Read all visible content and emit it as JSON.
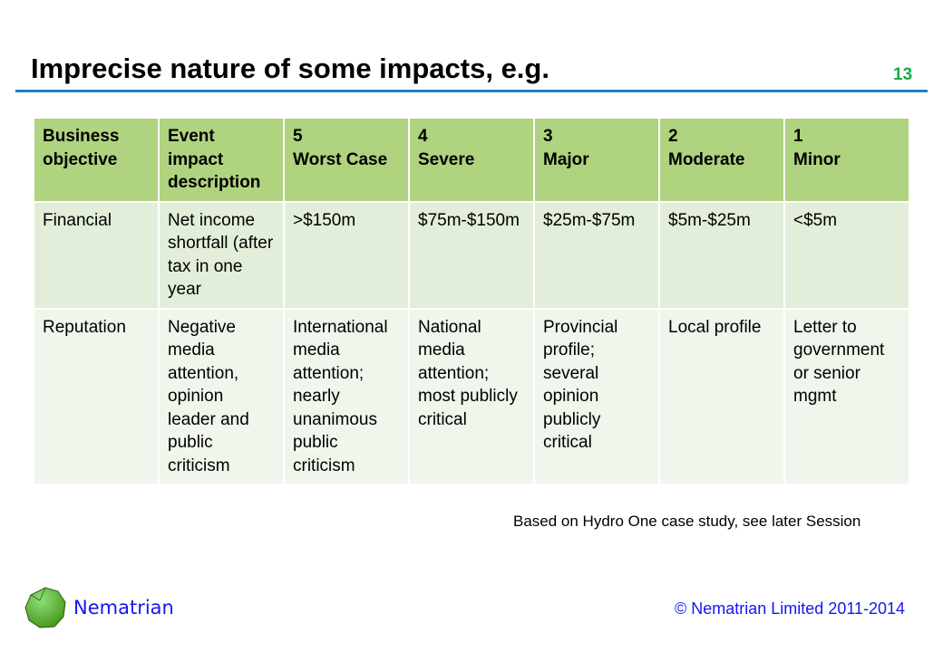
{
  "slide": {
    "title": "Imprecise nature of some impacts, e.g.",
    "page_number": "13",
    "note": "Based on Hydro One case study, see later Session",
    "brand": "Nematrian",
    "copyright": "© Nematrian Limited 2011-2014"
  },
  "table": {
    "headers": [
      "Business\nobjective",
      "Event\nimpact\ndescription",
      "5\nWorst Case",
      "4\nSevere",
      "3\nMajor",
      "2\nModerate",
      "1\nMinor"
    ],
    "rows": [
      [
        "Financial",
        "Net income shortfall (after tax in one year",
        ">$150m",
        "$75m-$150m",
        "$25m-$75m",
        "$5m-$25m",
        "<$5m"
      ],
      [
        "Reputation",
        "Negative media attention, opinion leader and public criticism",
        "International media attention; nearly unanimous public criticism",
        "National media attention; most publicly critical",
        "Provincial profile; several opinion publicly critical",
        "Local profile",
        "Letter to government or senior mgmt"
      ]
    ]
  }
}
